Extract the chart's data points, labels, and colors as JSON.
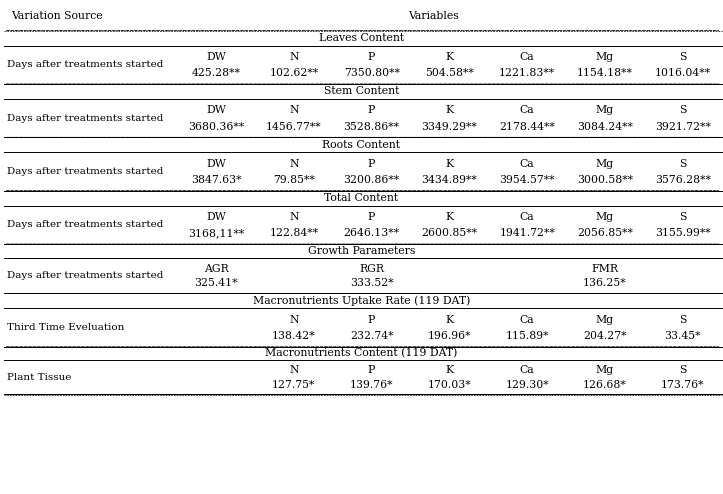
{
  "title_row": [
    "Variation Source",
    "Variables"
  ],
  "sections": [
    {
      "header": "Leaves Content",
      "row_label": "Days after treatments started",
      "col_headers": [
        "DW",
        "N",
        "P",
        "K",
        "Ca",
        "Mg",
        "S"
      ],
      "values": [
        "425.28**",
        "102.62**",
        "7350.80**",
        "504.58**",
        "1221.83**",
        "1154.18**",
        "1016.04**"
      ],
      "col_offsets": [
        0,
        1,
        2,
        3,
        4,
        5,
        6
      ]
    },
    {
      "header": "Stem Content",
      "row_label": "Days after treatments started",
      "col_headers": [
        "DW",
        "N",
        "P",
        "K",
        "Ca",
        "Mg",
        "S"
      ],
      "values": [
        "3680.36**",
        "1456.77**",
        "3528.86**",
        "3349.29**",
        "2178.44**",
        "3084.24**",
        "3921.72**"
      ],
      "col_offsets": [
        0,
        1,
        2,
        3,
        4,
        5,
        6
      ]
    },
    {
      "header": "Roots Content",
      "row_label": "Days after treatments started",
      "col_headers": [
        "DW",
        "N",
        "P",
        "K",
        "Ca",
        "Mg",
        "S"
      ],
      "values": [
        "3847.63*",
        "79.85**",
        "3200.86**",
        "3434.89**",
        "3954.57**",
        "3000.58**",
        "3576.28**"
      ],
      "col_offsets": [
        0,
        1,
        2,
        3,
        4,
        5,
        6
      ]
    },
    {
      "header": "Total Content",
      "row_label": "Days after treatments started",
      "col_headers": [
        "DW",
        "N",
        "P",
        "K",
        "Ca",
        "Mg",
        "S"
      ],
      "values": [
        "3168,11**",
        "122.84**",
        "2646.13**",
        "2600.85**",
        "1941.72**",
        "2056.85**",
        "3155.99**"
      ],
      "col_offsets": [
        0,
        1,
        2,
        3,
        4,
        5,
        6
      ]
    },
    {
      "header": "Growth Parameters",
      "row_label": "Days after treatments started",
      "col_headers": [
        "AGR",
        "",
        "RGR",
        "",
        "",
        "FMR",
        ""
      ],
      "values": [
        "325.41*",
        "",
        "333.52*",
        "",
        "",
        "136.25*",
        ""
      ],
      "col_offsets": [
        0,
        1,
        2,
        3,
        4,
        5,
        6
      ]
    },
    {
      "header": "Macronutrients Uptake Rate (119 DAT)",
      "row_label": "Third Time Eveluation",
      "col_headers": [
        "N",
        "P",
        "K",
        "Ca",
        "Mg",
        "S"
      ],
      "values": [
        "138.42*",
        "232.74*",
        "196.96*",
        "115.89*",
        "204.27*",
        "33.45*"
      ],
      "col_offsets": [
        1,
        2,
        3,
        4,
        5,
        6
      ]
    },
    {
      "header": "Macronutrients Content (119 DAT)",
      "row_label": "Plant Tissue",
      "col_headers": [
        "N",
        "P",
        "K",
        "Ca",
        "Mg",
        "S"
      ],
      "values": [
        "127.75*",
        "139.76*",
        "170.03*",
        "129.30*",
        "126.68*",
        "173.76*"
      ],
      "col_offsets": [
        1,
        2,
        3,
        4,
        5,
        6
      ]
    }
  ],
  "bg_color": "#ffffff",
  "text_color": "#000000",
  "font_size": 7.8
}
